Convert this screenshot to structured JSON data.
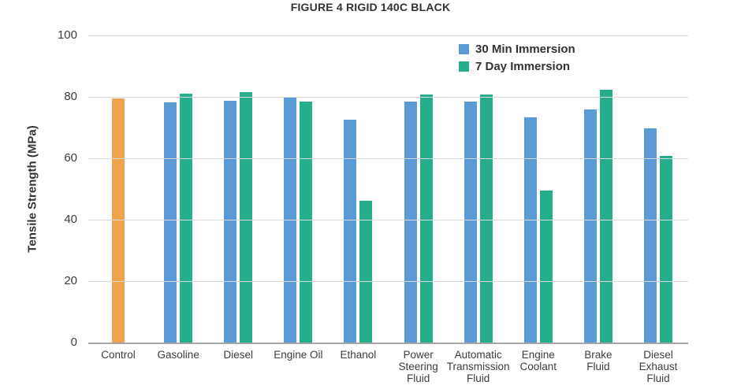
{
  "page": {
    "background": "#ffffff"
  },
  "chart_data": {
    "type": "bar",
    "title": "FIGURE 4 RIGID 140C BLACK",
    "ylabel": "Tensile Strength (MPa)",
    "xlabel": "",
    "ylim": [
      0,
      100
    ],
    "yticks": [
      0,
      20,
      40,
      60,
      80,
      100
    ],
    "grid": true,
    "legend_position": "top-right-inside",
    "categories": [
      "Control",
      "Gasoline",
      "Diesel",
      "Engine Oil",
      "Ethanol",
      "Power Steering Fluid",
      "Automatic Transmission Fluid",
      "Engine Coolant",
      "Brake Fluid",
      "Diesel Exhaust Fluid"
    ],
    "category_tick_labels": [
      "Control",
      "Gasoline",
      "Diesel",
      "Engine Oil",
      "Ethanol",
      "Power\nSteering\nFluid",
      "Automatic\nTransmission\nFluid",
      "Engine\nCoolant",
      "Brake\nFluid",
      "Diesel\nExhaust\nFluid"
    ],
    "control_series": {
      "name": "Control",
      "color": "#F2A14E",
      "value": 79.6
    },
    "series": [
      {
        "name": "30 Min Immersion",
        "color": "#5B9BD5",
        "values": [
          null,
          78.3,
          78.7,
          79.9,
          72.7,
          78.4,
          78.5,
          73.4,
          75.9,
          69.7
        ]
      },
      {
        "name": "7 Day Immersion",
        "color": "#26AD8C",
        "values": [
          null,
          81.1,
          81.6,
          78.4,
          46.1,
          80.7,
          80.8,
          49.4,
          82.4,
          60.9
        ]
      }
    ],
    "colors": {
      "gridline": "#d9d9d9",
      "axis_line": "#a6a6a6",
      "text": "#3d3d3d"
    }
  }
}
